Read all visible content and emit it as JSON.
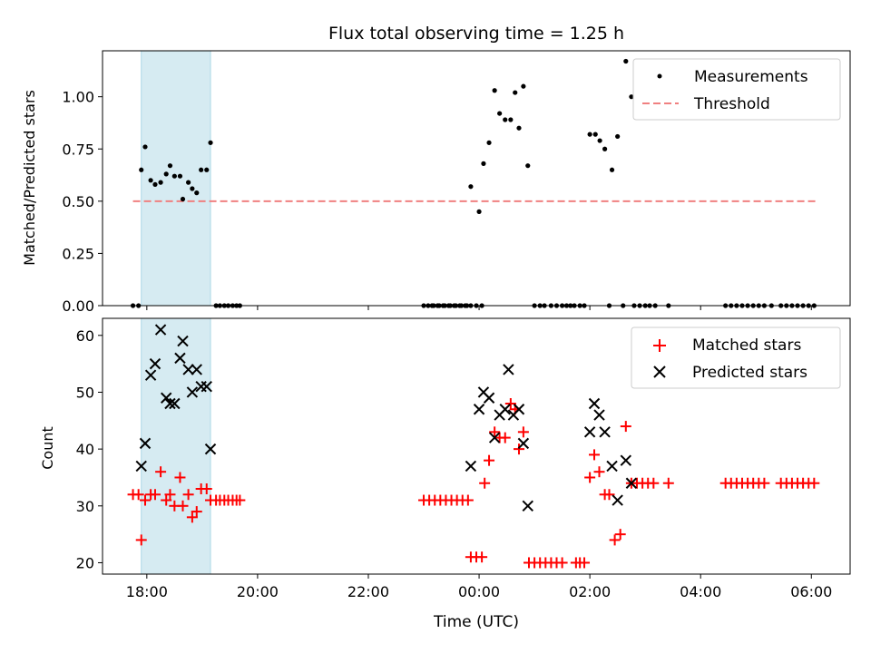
{
  "chart_data": [
    {
      "type": "scatter",
      "title": "Flux total observing time = 1.25 h",
      "xlabel": "",
      "ylabel": "Matched/Predicted stars",
      "ylim": [
        0,
        1.22
      ],
      "yticks": [
        "0.00",
        "0.25",
        "0.50",
        "0.75",
        "1.00"
      ],
      "ytick_values": [
        0,
        0.25,
        0.5,
        0.75,
        1.0
      ],
      "xlim_hours": [
        17.2,
        30.7
      ],
      "legend": {
        "placement": "upper right",
        "entries": [
          "Measurements",
          "Threshold"
        ]
      },
      "shaded_interval_hours": [
        17.9,
        19.15
      ],
      "threshold": {
        "name": "Threshold",
        "value": 0.5,
        "x_range_hours": [
          17.75,
          30.1
        ],
        "color": "#f08080"
      },
      "series": [
        {
          "name": "Measurements",
          "color": "#000000",
          "points": [
            [
              17.75,
              0
            ],
            [
              17.85,
              0
            ],
            [
              17.9,
              0.65
            ],
            [
              17.97,
              0.76
            ],
            [
              18.07,
              0.6
            ],
            [
              18.15,
              0.58
            ],
            [
              18.25,
              0.59
            ],
            [
              18.35,
              0.63
            ],
            [
              18.42,
              0.67
            ],
            [
              18.5,
              0.62
            ],
            [
              18.6,
              0.62
            ],
            [
              18.65,
              0.51
            ],
            [
              18.75,
              0.59
            ],
            [
              18.82,
              0.56
            ],
            [
              18.9,
              0.54
            ],
            [
              18.98,
              0.65
            ],
            [
              19.08,
              0.65
            ],
            [
              19.15,
              0.78
            ],
            [
              19.25,
              0
            ],
            [
              19.32,
              0
            ],
            [
              19.4,
              0
            ],
            [
              19.47,
              0
            ],
            [
              19.55,
              0
            ],
            [
              19.62,
              0
            ],
            [
              19.68,
              0
            ],
            [
              23.15,
              0
            ],
            [
              23.25,
              0
            ],
            [
              23.35,
              0
            ],
            [
              23.45,
              0
            ],
            [
              23.55,
              0
            ],
            [
              23.65,
              0
            ],
            [
              23.75,
              0
            ],
            [
              23.85,
              0
            ],
            [
              23.95,
              0
            ],
            [
              24.05,
              0
            ],
            [
              23.0,
              0
            ],
            [
              23.08,
              0
            ],
            [
              23.18,
              0
            ],
            [
              23.28,
              0
            ],
            [
              23.38,
              0
            ],
            [
              23.48,
              0
            ],
            [
              23.58,
              0
            ],
            [
              23.68,
              0
            ],
            [
              23.78,
              0
            ],
            [
              23.85,
              0.57
            ],
            [
              24.0,
              0.45
            ],
            [
              24.08,
              0.68
            ],
            [
              24.18,
              0.78
            ],
            [
              24.28,
              1.03
            ],
            [
              24.37,
              0.92
            ],
            [
              24.47,
              0.89
            ],
            [
              24.57,
              0.89
            ],
            [
              24.65,
              1.02
            ],
            [
              24.72,
              0.85
            ],
            [
              24.8,
              1.05
            ],
            [
              24.88,
              0.67
            ],
            [
              25.0,
              0
            ],
            [
              25.1,
              0
            ],
            [
              25.18,
              0
            ],
            [
              25.3,
              0
            ],
            [
              25.4,
              0
            ],
            [
              25.5,
              0
            ],
            [
              25.58,
              0
            ],
            [
              25.65,
              0
            ],
            [
              25.72,
              0
            ],
            [
              25.82,
              0
            ],
            [
              25.9,
              0
            ],
            [
              26.0,
              0.82
            ],
            [
              26.1,
              0.82
            ],
            [
              26.18,
              0.79
            ],
            [
              26.27,
              0.75
            ],
            [
              26.4,
              0.65
            ],
            [
              26.5,
              0.81
            ],
            [
              26.65,
              1.17
            ],
            [
              26.75,
              1.0
            ],
            [
              26.35,
              0
            ],
            [
              26.6,
              0
            ],
            [
              26.8,
              0
            ],
            [
              26.9,
              0
            ],
            [
              27.0,
              0
            ],
            [
              27.08,
              0
            ],
            [
              27.18,
              0
            ],
            [
              27.42,
              0
            ],
            [
              28.45,
              0
            ],
            [
              28.55,
              0
            ],
            [
              28.65,
              0
            ],
            [
              28.75,
              0
            ],
            [
              28.85,
              0
            ],
            [
              28.95,
              0
            ],
            [
              29.05,
              0
            ],
            [
              29.15,
              0
            ],
            [
              29.28,
              0
            ],
            [
              29.45,
              0
            ],
            [
              29.55,
              0
            ],
            [
              29.65,
              0
            ],
            [
              29.75,
              0
            ],
            [
              29.85,
              0
            ],
            [
              29.95,
              0
            ],
            [
              30.05,
              0
            ]
          ]
        }
      ]
    },
    {
      "type": "scatter",
      "title": "",
      "xlabel": "Time (UTC)",
      "ylabel": "Count",
      "ylim": [
        18,
        63
      ],
      "yticks": [
        "20",
        "30",
        "40",
        "50",
        "60"
      ],
      "ytick_values": [
        20,
        30,
        40,
        50,
        60
      ],
      "xticks": [
        "18:00",
        "20:00",
        "22:00",
        "00:00",
        "02:00",
        "04:00",
        "06:00"
      ],
      "xtick_hours": [
        18,
        20,
        22,
        24,
        26,
        28,
        30
      ],
      "xlim_hours": [
        17.2,
        30.7
      ],
      "legend": {
        "placement": "upper right",
        "entries": [
          "Matched stars",
          "Predicted stars"
        ]
      },
      "shaded_interval_hours": [
        17.9,
        19.15
      ],
      "series": [
        {
          "name": "Matched stars",
          "marker": "+",
          "color": "#ff0000",
          "points": [
            [
              17.75,
              32
            ],
            [
              17.85,
              32
            ],
            [
              17.9,
              24
            ],
            [
              17.97,
              31
            ],
            [
              18.07,
              32
            ],
            [
              18.15,
              32
            ],
            [
              18.25,
              36
            ],
            [
              18.35,
              31
            ],
            [
              18.42,
              32
            ],
            [
              18.5,
              30
            ],
            [
              18.6,
              35
            ],
            [
              18.65,
              30
            ],
            [
              18.75,
              32
            ],
            [
              18.82,
              28
            ],
            [
              18.9,
              29
            ],
            [
              18.98,
              33
            ],
            [
              19.08,
              33
            ],
            [
              19.15,
              31
            ],
            [
              19.25,
              31
            ],
            [
              19.32,
              31
            ],
            [
              19.4,
              31
            ],
            [
              19.47,
              31
            ],
            [
              19.55,
              31
            ],
            [
              19.62,
              31
            ],
            [
              19.68,
              31
            ],
            [
              23.0,
              31
            ],
            [
              23.1,
              31
            ],
            [
              23.2,
              31
            ],
            [
              23.3,
              31
            ],
            [
              23.4,
              31
            ],
            [
              23.5,
              31
            ],
            [
              23.6,
              31
            ],
            [
              23.7,
              31
            ],
            [
              23.8,
              31
            ],
            [
              23.85,
              21
            ],
            [
              23.95,
              21
            ],
            [
              24.05,
              21
            ],
            [
              24.1,
              34
            ],
            [
              24.18,
              38
            ],
            [
              24.28,
              43
            ],
            [
              24.37,
              42
            ],
            [
              24.47,
              42
            ],
            [
              24.57,
              48
            ],
            [
              24.65,
              47
            ],
            [
              24.72,
              40
            ],
            [
              24.8,
              43
            ],
            [
              24.9,
              20
            ],
            [
              25.0,
              20
            ],
            [
              25.1,
              20
            ],
            [
              25.2,
              20
            ],
            [
              25.3,
              20
            ],
            [
              25.4,
              20
            ],
            [
              25.5,
              20
            ],
            [
              25.75,
              20
            ],
            [
              25.82,
              20
            ],
            [
              25.9,
              20
            ],
            [
              26.0,
              35
            ],
            [
              26.08,
              39
            ],
            [
              26.17,
              36
            ],
            [
              26.27,
              32
            ],
            [
              26.35,
              32
            ],
            [
              26.45,
              24
            ],
            [
              26.55,
              25
            ],
            [
              26.65,
              44
            ],
            [
              26.75,
              34
            ],
            [
              26.85,
              34
            ],
            [
              26.95,
              34
            ],
            [
              27.05,
              34
            ],
            [
              27.15,
              34
            ],
            [
              27.42,
              34
            ],
            [
              28.45,
              34
            ],
            [
              28.55,
              34
            ],
            [
              28.65,
              34
            ],
            [
              28.75,
              34
            ],
            [
              28.85,
              34
            ],
            [
              28.95,
              34
            ],
            [
              29.05,
              34
            ],
            [
              29.15,
              34
            ],
            [
              29.45,
              34
            ],
            [
              29.55,
              34
            ],
            [
              29.65,
              34
            ],
            [
              29.75,
              34
            ],
            [
              29.85,
              34
            ],
            [
              29.95,
              34
            ],
            [
              30.05,
              34
            ]
          ]
        },
        {
          "name": "Predicted stars",
          "marker": "x",
          "color": "#000000",
          "points": [
            [
              17.9,
              37
            ],
            [
              17.97,
              41
            ],
            [
              18.07,
              53
            ],
            [
              18.15,
              55
            ],
            [
              18.25,
              61
            ],
            [
              18.35,
              49
            ],
            [
              18.42,
              48
            ],
            [
              18.5,
              48
            ],
            [
              18.6,
              56
            ],
            [
              18.65,
              59
            ],
            [
              18.75,
              54
            ],
            [
              18.82,
              50
            ],
            [
              18.9,
              54
            ],
            [
              18.98,
              51
            ],
            [
              19.08,
              51
            ],
            [
              19.15,
              40
            ],
            [
              23.85,
              37
            ],
            [
              24.0,
              47
            ],
            [
              24.08,
              50
            ],
            [
              24.18,
              49
            ],
            [
              24.28,
              42
            ],
            [
              24.37,
              46
            ],
            [
              24.47,
              47
            ],
            [
              24.53,
              54
            ],
            [
              24.62,
              46
            ],
            [
              24.72,
              47
            ],
            [
              24.8,
              41
            ],
            [
              24.88,
              30
            ],
            [
              26.0,
              43
            ],
            [
              26.08,
              48
            ],
            [
              26.17,
              46
            ],
            [
              26.27,
              43
            ],
            [
              26.4,
              37
            ],
            [
              26.5,
              31
            ],
            [
              26.65,
              38
            ],
            [
              26.75,
              34
            ]
          ]
        }
      ]
    }
  ]
}
